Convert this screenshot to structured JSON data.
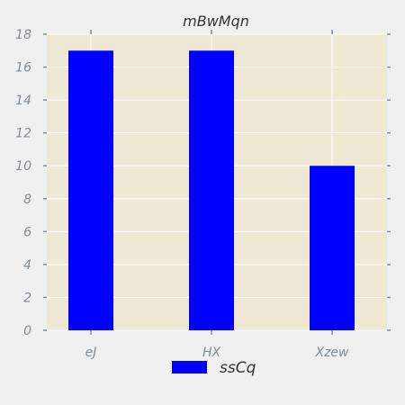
{
  "chart_data": {
    "type": "bar",
    "title": "mBwMqn",
    "categories": [
      "eJ",
      "HX",
      "Xzew"
    ],
    "series": [
      {
        "name": "ssCq",
        "values": [
          17,
          17,
          10
        ]
      }
    ],
    "xlabel": "",
    "ylabel": "",
    "ylim": [
      0,
      18
    ],
    "yticks": [
      0,
      2,
      4,
      6,
      8,
      10,
      12,
      14,
      16,
      18
    ],
    "grid": true,
    "legend_position": "bottom-center",
    "colors": {
      "background": "#f0f0f0",
      "plot_background": "#eee8d5",
      "bar": "#0000ff",
      "grid": "#ffffff",
      "tick": "#7f8c96"
    }
  }
}
